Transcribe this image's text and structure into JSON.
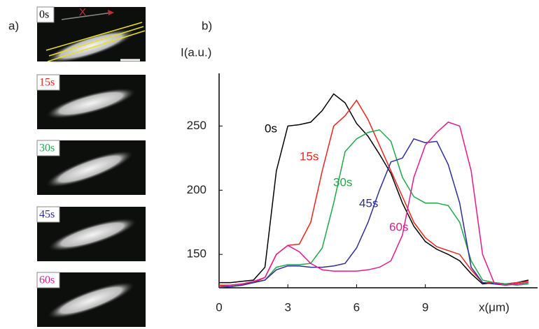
{
  "images": {
    "panel_label": "a)",
    "arrow_label": "X"
  },
  "chart_data": {
    "type": "line",
    "panel_label": "b)",
    "y_label": "I(a.u.)",
    "x_label": "x(μm)",
    "x": [
      0,
      0.5,
      1,
      1.5,
      2,
      2.5,
      3,
      3.5,
      4,
      4.5,
      5,
      5.5,
      6,
      6.5,
      7,
      7.5,
      8,
      8.5,
      9,
      9.5,
      10,
      10.5,
      11,
      11.5,
      12,
      12.5,
      13,
      13.5
    ],
    "series": [
      {
        "name": "0s",
        "color": "#000000",
        "values": [
          128,
          128,
          129,
          130,
          140,
          215,
          250,
          251,
          253,
          262,
          275,
          268,
          252,
          242,
          228,
          213,
          190,
          172,
          160,
          154,
          150,
          145,
          135,
          127,
          128,
          127,
          128,
          130
        ]
      },
      {
        "name": "15s",
        "color": "#e8261f",
        "values": [
          126,
          126,
          127,
          128,
          132,
          150,
          157,
          158,
          175,
          215,
          250,
          258,
          270,
          255,
          235,
          215,
          195,
          175,
          163,
          156,
          153,
          150,
          138,
          128,
          128,
          127,
          128,
          129
        ]
      },
      {
        "name": "30s",
        "color": "#1fa84a",
        "values": [
          125,
          125,
          126,
          128,
          130,
          140,
          142,
          142,
          143,
          155,
          190,
          230,
          240,
          245,
          247,
          238,
          210,
          195,
          190,
          190,
          188,
          175,
          145,
          130,
          128,
          127,
          126,
          127
        ]
      },
      {
        "name": "45s",
        "color": "#2e2e96",
        "values": [
          124,
          125,
          126,
          128,
          130,
          138,
          141,
          141,
          140,
          140,
          141,
          143,
          155,
          175,
          200,
          222,
          225,
          240,
          237,
          238,
          220,
          190,
          140,
          128,
          127,
          126,
          127,
          128
        ]
      },
      {
        "name": "60s",
        "color": "#e5198f",
        "values": [
          125,
          126,
          127,
          129,
          132,
          150,
          157,
          152,
          143,
          138,
          137,
          137,
          137,
          138,
          140,
          145,
          165,
          210,
          235,
          245,
          253,
          250,
          215,
          150,
          128,
          126,
          127,
          128
        ]
      }
    ],
    "xlim": [
      0,
      13.9
    ],
    "ylim": [
      124,
      291
    ],
    "xticks": [
      0,
      3,
      6,
      9
    ],
    "yticks": [
      150,
      200,
      250
    ]
  }
}
